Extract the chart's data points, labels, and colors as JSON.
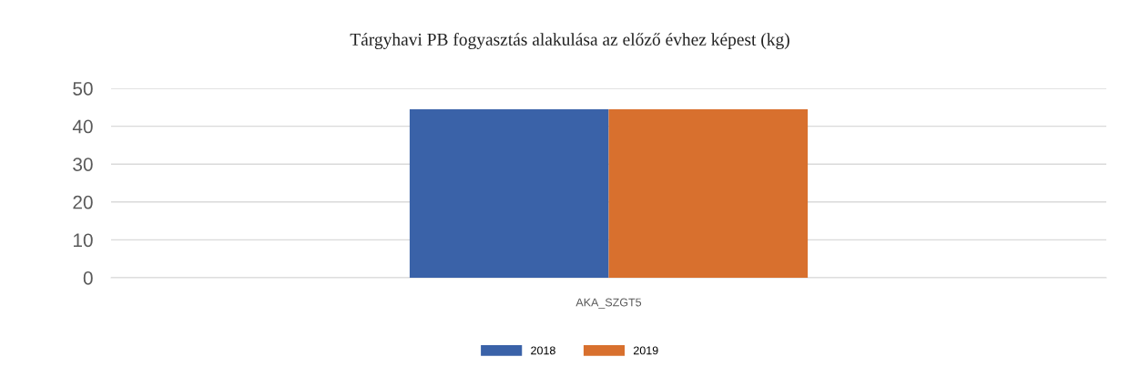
{
  "chart_data": {
    "type": "bar",
    "title": "Tárgyhavi PB fogyasztás alakulása az előző évhez képest (kg)",
    "categories": [
      "AKA_SZGT5"
    ],
    "series": [
      {
        "name": "2018",
        "color": "#3a62a8",
        "values": [
          44.5
        ]
      },
      {
        "name": "2019",
        "color": "#d8702e",
        "values": [
          44.5
        ]
      }
    ],
    "ylim": [
      0,
      50
    ],
    "yticks": [
      0,
      10,
      20,
      30,
      40,
      50
    ],
    "grid": "y",
    "legend": "bottom"
  }
}
